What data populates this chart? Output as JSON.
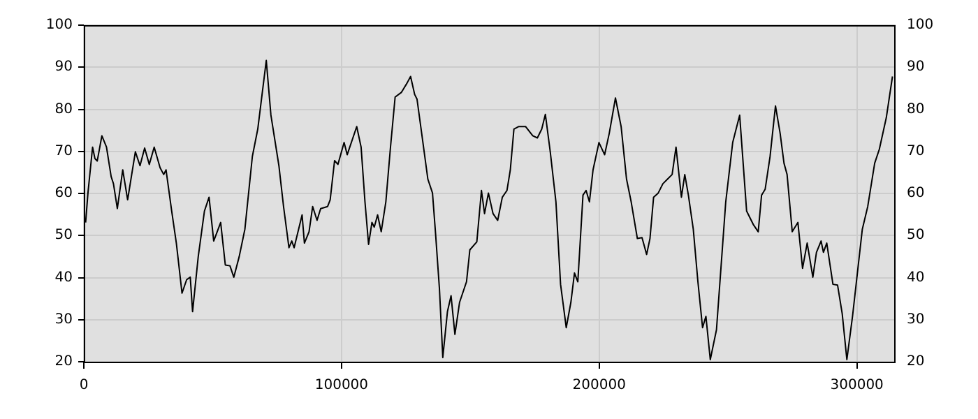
{
  "chart_data": {
    "type": "line",
    "color": "#000000",
    "x": [
      700,
      1600,
      3400,
      4300,
      5200,
      7000,
      8800,
      10600,
      11500,
      13000,
      15100,
      17000,
      20000,
      21800,
      23600,
      25400,
      27300,
      29600,
      31000,
      31900,
      34100,
      35900,
      38100,
      39900,
      41300,
      42200,
      44400,
      46800,
      48600,
      50400,
      53100,
      54900,
      56700,
      58200,
      60300,
      62500,
      65400,
      67500,
      70800,
      72600,
      75700,
      77500,
      79600,
      80700,
      81600,
      84700,
      85600,
      87400,
      88800,
      90500,
      91900,
      94600,
      95600,
      97300,
      98600,
      101000,
      102200,
      105900,
      107600,
      109100,
      110500,
      111800,
      112700,
      114000,
      115400,
      117200,
      119000,
      120800,
      123200,
      125400,
      126800,
      128400,
      129300,
      131100,
      133500,
      135300,
      136500,
      138000,
      139300,
      141100,
      142500,
      144000,
      145800,
      148500,
      149800,
      152500,
      154300,
      155500,
      157000,
      158800,
      160600,
      162400,
      164200,
      165500,
      166900,
      168800,
      171400,
      174200,
      176000,
      177700,
      179100,
      181000,
      183200,
      185000,
      187200,
      189000,
      190400,
      191700,
      193700,
      194900,
      196200,
      197600,
      199900,
      202100,
      203900,
      206300,
      208500,
      210600,
      212400,
      214800,
      216600,
      218400,
      219700,
      221100,
      222900,
      224700,
      226500,
      228300,
      229800,
      231900,
      233200,
      234600,
      236500,
      238300,
      240100,
      241400,
      243100,
      245500,
      247300,
      249100,
      251800,
      254500,
      257200,
      259900,
      261700,
      263000,
      264400,
      266300,
      268400,
      270200,
      271700,
      272900,
      274900,
      277100,
      278900,
      280700,
      282900,
      284300,
      286100,
      287000,
      288300,
      290700,
      292500,
      294300,
      296100,
      298300,
      302100,
      304200,
      306900,
      308700,
      311400,
      313800
    ],
    "values": [
      53.1,
      60.1,
      71,
      68.3,
      67.7,
      73.7,
      71,
      64,
      62.3,
      56.4,
      65.6,
      58.5,
      69.9,
      66.6,
      70.8,
      66.9,
      71,
      66.1,
      64.5,
      65.6,
      55.8,
      48.2,
      36.3,
      39.5,
      40.1,
      31.9,
      45,
      55.8,
      59.1,
      48.7,
      53.1,
      43,
      42.8,
      40.1,
      45,
      51.5,
      68.8,
      75.3,
      91.6,
      78.6,
      66.6,
      56.9,
      47.1,
      48.7,
      47.1,
      54.9,
      48.2,
      50.9,
      56.9,
      53.6,
      56.4,
      56.9,
      58.5,
      67.8,
      66.9,
      72.1,
      69.2,
      75.9,
      71,
      58,
      47.9,
      53.1,
      52,
      54.9,
      50.9,
      58,
      71,
      82.9,
      84,
      86.2,
      87.8,
      83.5,
      82.4,
      74.3,
      63.4,
      60.1,
      50.4,
      37.3,
      21,
      31.9,
      35.7,
      26.5,
      34.1,
      39,
      46.6,
      48.5,
      60.7,
      55.2,
      60.1,
      55.2,
      53.6,
      59.1,
      60.7,
      65.6,
      75.3,
      75.9,
      75.9,
      73.7,
      73.2,
      75.3,
      78.8,
      69.9,
      58,
      38.4,
      28.1,
      34.1,
      41.1,
      39,
      59.6,
      60.7,
      58,
      65.6,
      72.1,
      69.2,
      74.3,
      82.7,
      75.9,
      63.4,
      58,
      49.3,
      49.5,
      45.5,
      49.3,
      59.1,
      60.1,
      62.3,
      63.4,
      64.5,
      71,
      59.1,
      64.5,
      59.6,
      51.5,
      39,
      28.1,
      30.8,
      20.5,
      27.6,
      42.8,
      58,
      72.1,
      78.6,
      55.8,
      52.5,
      50.9,
      59.6,
      61,
      68.8,
      80.8,
      74.3,
      67.2,
      64.5,
      50.9,
      53.1,
      42.2,
      48.2,
      40.1,
      46,
      48.7,
      46,
      48.2,
      38.4,
      38.2,
      31.4,
      20.5,
      30.8,
      51.5,
      56.9,
      67.2,
      70.5,
      78,
      87.8
    ],
    "xlim": [
      0,
      315000
    ],
    "xticks": [
      0,
      100000,
      200000,
      300000
    ],
    "ylim": [
      20,
      100
    ],
    "yticks": [
      20,
      30,
      40,
      50,
      60,
      70,
      80,
      90,
      100
    ],
    "y2lim": [
      20,
      100
    ],
    "y2ticks": [
      20,
      30,
      40,
      50,
      60,
      70,
      80,
      90,
      100
    ],
    "grid": true,
    "legend": false,
    "marker": "none",
    "line_style": "solid"
  }
}
